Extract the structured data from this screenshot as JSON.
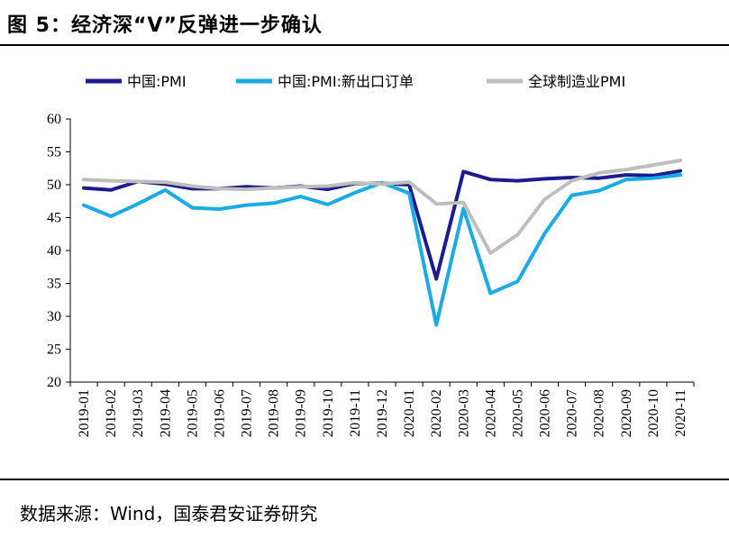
{
  "figure": {
    "title": "图 5：经济深“V”反弹进一步确认",
    "source": "数据来源：Wind，国泰君安证券研究"
  },
  "chart_data": {
    "type": "line",
    "title": "",
    "xlabel": "",
    "ylabel": "",
    "ylim": [
      20,
      60
    ],
    "yticks": [
      20,
      25,
      30,
      35,
      40,
      45,
      50,
      55,
      60
    ],
    "grid": false,
    "legend_position": "top",
    "categories": [
      "2019-01",
      "2019-02",
      "2019-03",
      "2019-04",
      "2019-05",
      "2019-06",
      "2019-07",
      "2019-08",
      "2019-09",
      "2019-10",
      "2019-11",
      "2019-12",
      "2020-01",
      "2020-02",
      "2020-03",
      "2020-04",
      "2020-05",
      "2020-06",
      "2020-07",
      "2020-08",
      "2020-09",
      "2020-10",
      "2020-11"
    ],
    "series": [
      {
        "name": "中国:PMI",
        "color": "#1c1c8c",
        "values": [
          49.5,
          49.2,
          50.5,
          50.1,
          49.4,
          49.4,
          49.7,
          49.5,
          49.8,
          49.3,
          50.2,
          50.2,
          50.0,
          35.7,
          52.0,
          50.8,
          50.6,
          50.9,
          51.1,
          51.0,
          51.5,
          51.4,
          52.1
        ]
      },
      {
        "name": "中国:PMI:新出口订单",
        "color": "#1aabe6",
        "values": [
          46.9,
          45.2,
          47.1,
          49.2,
          46.5,
          46.3,
          46.9,
          47.2,
          48.2,
          47.0,
          48.8,
          50.3,
          48.7,
          28.7,
          46.4,
          33.5,
          35.3,
          42.6,
          48.4,
          49.1,
          50.8,
          51.0,
          51.5
        ]
      },
      {
        "name": "全球制造业PMI",
        "color": "#bebebe",
        "values": [
          50.8,
          50.6,
          50.5,
          50.4,
          49.8,
          49.4,
          49.3,
          49.5,
          49.7,
          49.8,
          50.3,
          50.1,
          50.4,
          47.1,
          47.3,
          39.6,
          42.4,
          47.8,
          50.6,
          51.8,
          52.3,
          53.0,
          53.7
        ]
      }
    ]
  }
}
